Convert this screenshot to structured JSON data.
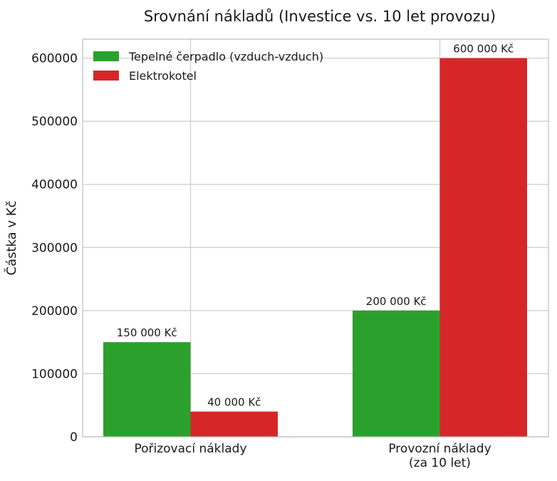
{
  "chart_data": {
    "type": "bar",
    "title": "Srovnání nákladů (Investice vs. 10 let provozu)",
    "xlabel": "",
    "ylabel": "Částka v Kč",
    "categories": [
      [
        "Pořizovací náklady"
      ],
      [
        "Provozní náklady",
        "(za 10 let)"
      ]
    ],
    "series": [
      {
        "name": "Tepelné čerpadlo (vzduch-vzduch)",
        "color": "#2ca02c",
        "values": [
          150000,
          200000
        ],
        "labels": [
          "150 000 Kč",
          "200 000 Kč"
        ]
      },
      {
        "name": "Elektrokotel",
        "color": "#d62728",
        "values": [
          40000,
          600000
        ],
        "labels": [
          "40 000 Kč",
          "600 000 Kč"
        ]
      }
    ],
    "ylim": [
      0,
      630000
    ],
    "yticks": [
      0,
      100000,
      200000,
      300000,
      400000,
      500000,
      600000
    ],
    "ytick_labels": [
      "0",
      "100000",
      "200000",
      "300000",
      "400000",
      "500000",
      "600000"
    ],
    "grid": true,
    "legend_position": "top-left"
  }
}
